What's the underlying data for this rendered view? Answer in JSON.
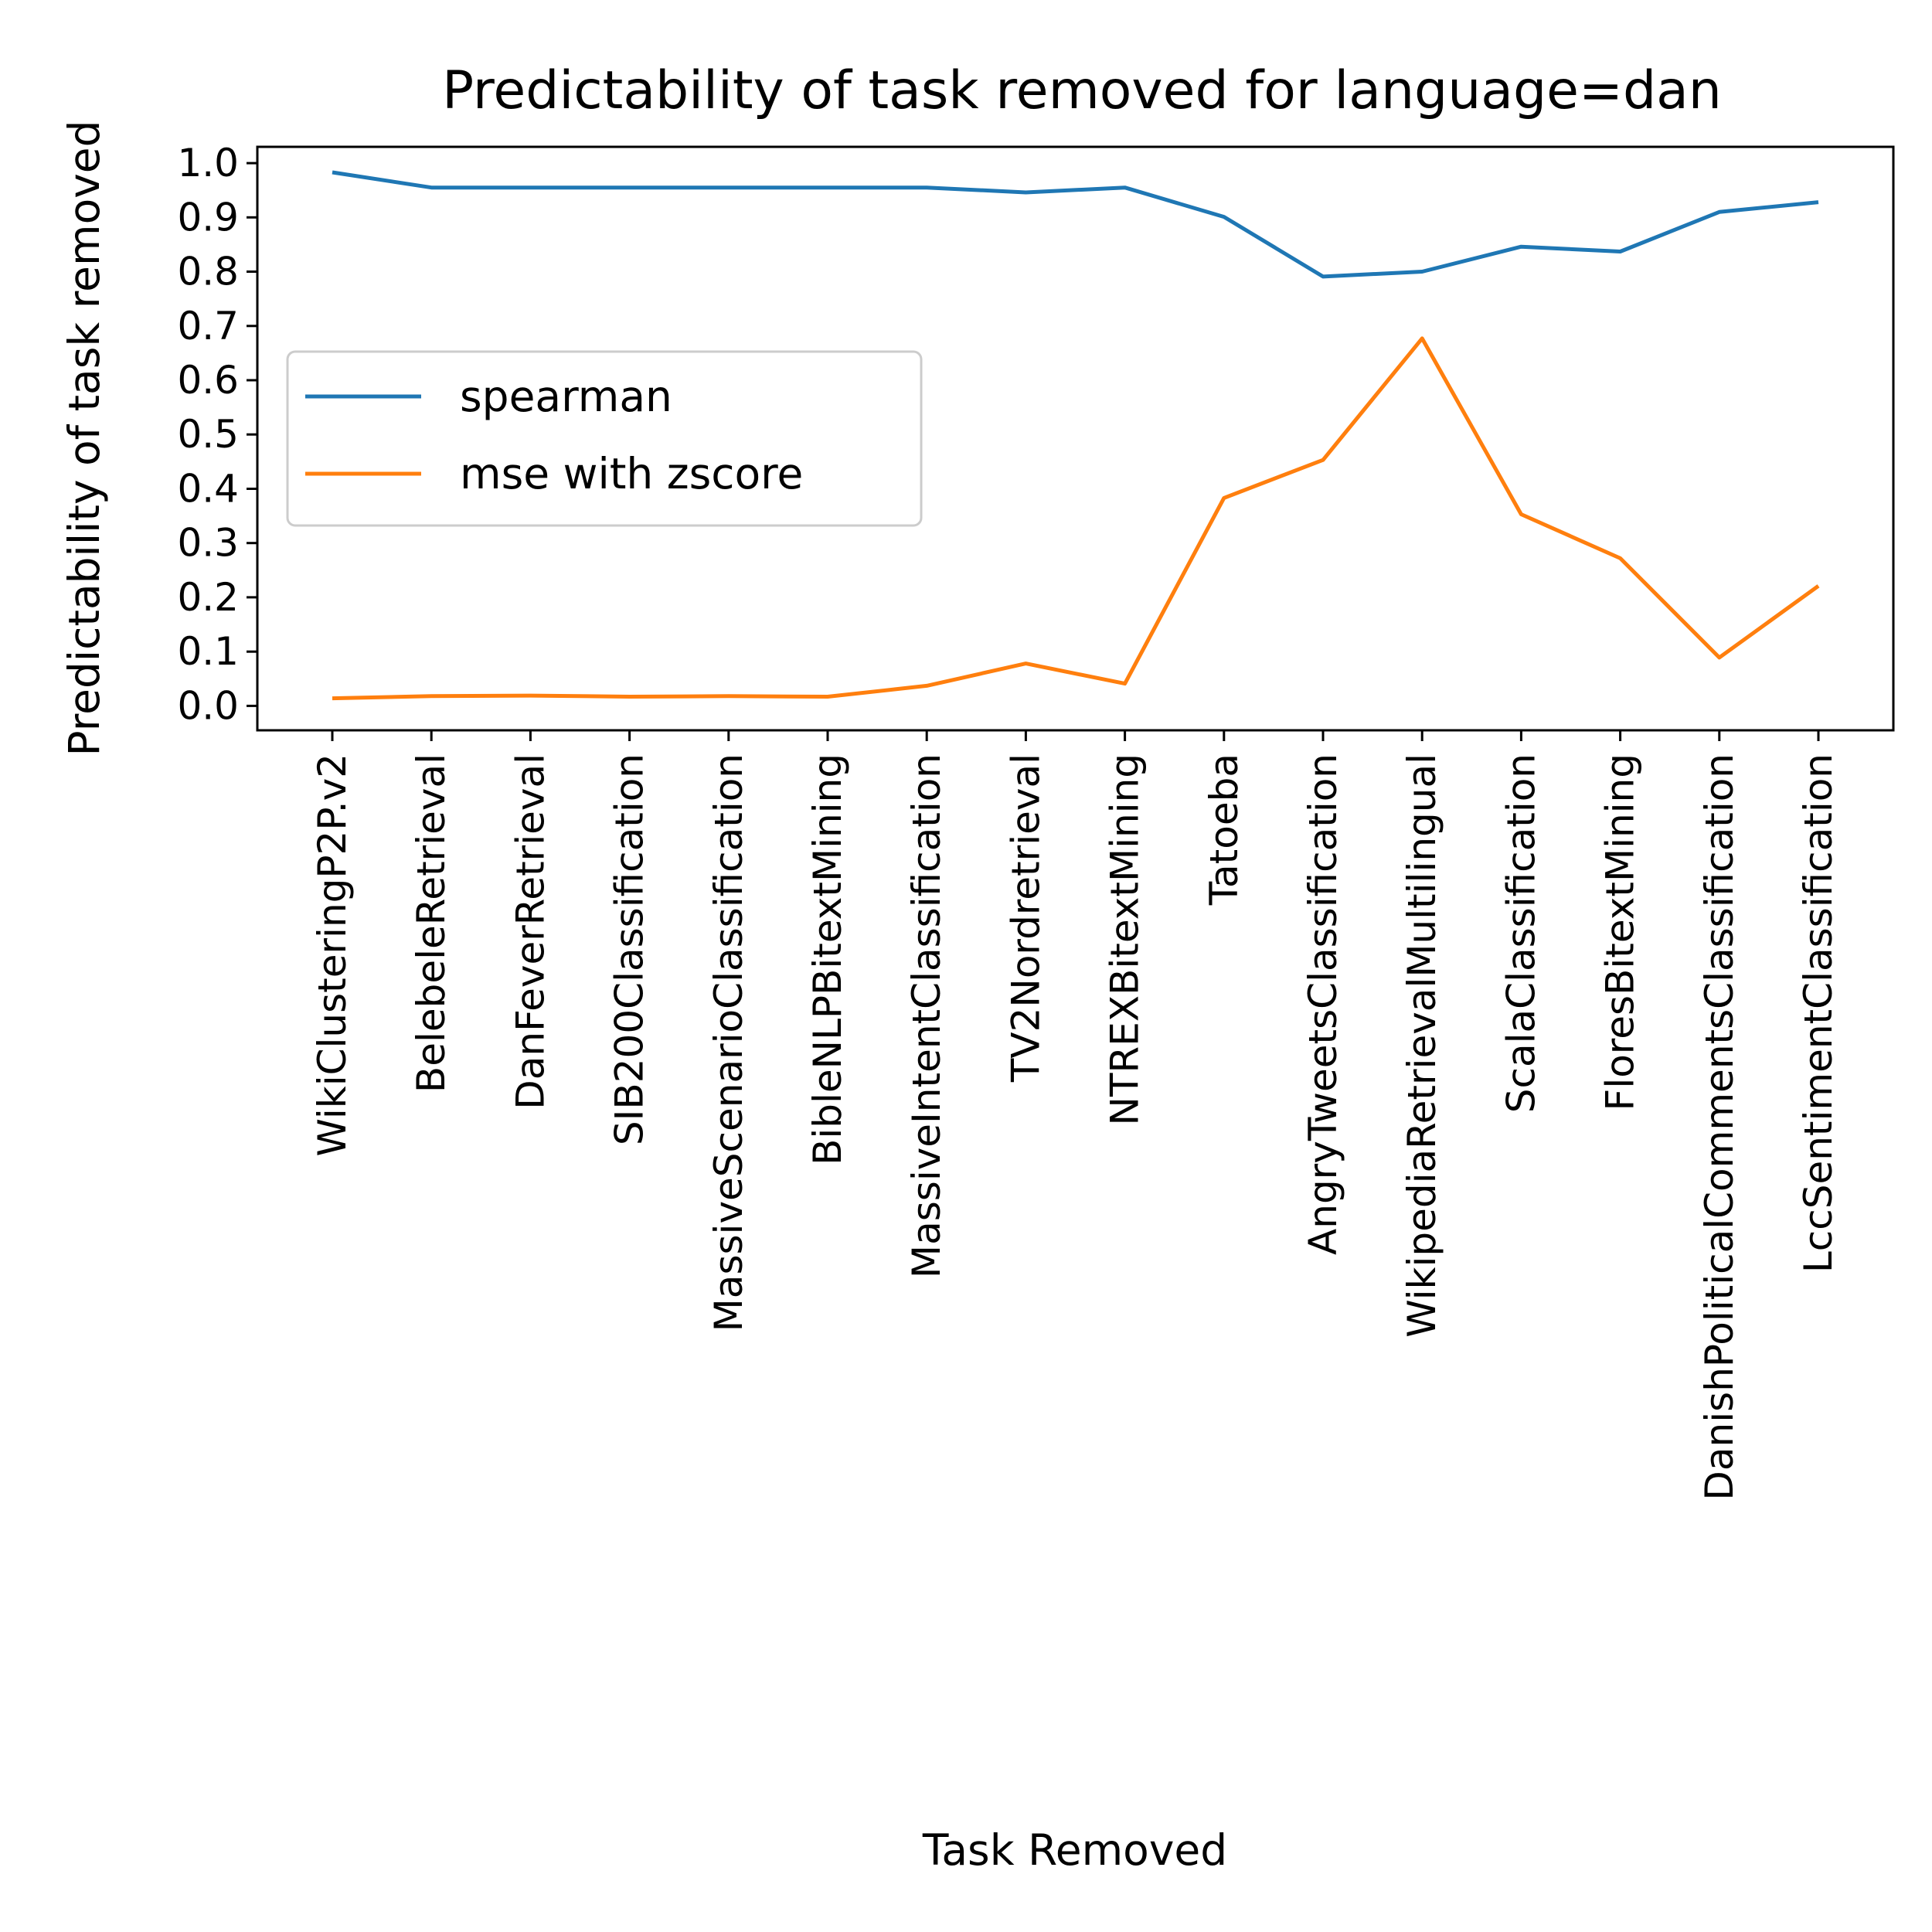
{
  "chart_data": {
    "type": "line",
    "title": "Predictability of task removed for language=dan",
    "xlabel": "Task Removed",
    "ylabel": "Predictability of task removed",
    "ylim": [
      -0.045,
      1.03
    ],
    "yticks": [
      "0.0",
      "0.1",
      "0.2",
      "0.3",
      "0.4",
      "0.5",
      "0.6",
      "0.7",
      "0.8",
      "0.9",
      "1.0"
    ],
    "grid": false,
    "legend_position": "center-left",
    "categories": [
      "WikiClusteringP2P.v2",
      "BelebeleRetrieval",
      "DanFeverRetrieval",
      "SIB200Classification",
      "MassiveScenarioClassification",
      "BibleNLPBitextMining",
      "MassiveIntentClassification",
      "TV2Nordretrieval",
      "NTREXBitextMining",
      "Tatoeba",
      "AngryTweetsClassification",
      "WikipediaRetrievalMultilingual",
      "ScalaClassification",
      "FloresBitextMining",
      "DanishPoliticalCommentsClassification",
      "LccSentimentClassification"
    ],
    "series": [
      {
        "name": "spearman",
        "color": "#1f77b4",
        "values": [
          0.983,
          0.955,
          0.955,
          0.955,
          0.955,
          0.955,
          0.955,
          0.946,
          0.955,
          0.901,
          0.791,
          0.8,
          0.846,
          0.837,
          0.91,
          0.928
        ]
      },
      {
        "name": "mse with zscore",
        "color": "#ff7f0e",
        "values": [
          0.014,
          0.018,
          0.019,
          0.017,
          0.018,
          0.017,
          0.037,
          0.078,
          0.041,
          0.383,
          0.453,
          0.677,
          0.353,
          0.272,
          0.089,
          0.221
        ]
      }
    ]
  }
}
